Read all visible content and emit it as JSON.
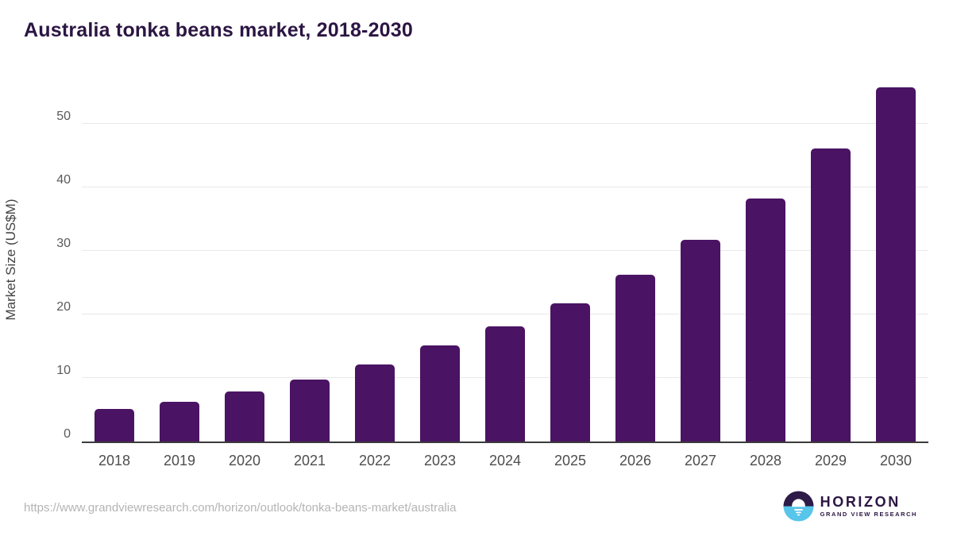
{
  "title": "Australia tonka beans market, 2018-2030",
  "chart_data": {
    "type": "bar",
    "title": "Australia tonka beans market, 2018-2030",
    "categories": [
      "2018",
      "2019",
      "2020",
      "2021",
      "2022",
      "2023",
      "2024",
      "2025",
      "2026",
      "2027",
      "2028",
      "2029",
      "2030"
    ],
    "values": [
      5.1,
      6.3,
      7.9,
      9.7,
      12.1,
      15.1,
      18.1,
      21.8,
      26.2,
      31.7,
      38.2,
      46.1,
      55.7
    ],
    "xlabel": "",
    "ylabel": "Market Size (US$M)",
    "yticks": [
      0,
      10,
      20,
      30,
      40,
      50
    ],
    "ylim": [
      0,
      57.6
    ],
    "grid": "horizontal-only",
    "legend": "none",
    "bar_color": "#4a1363"
  },
  "footer": {
    "source_url": "https://www.grandviewresearch.com/horizon/outlook/tonka-beans-market/australia",
    "logo": {
      "brand": "HORIZON",
      "sub_brand": "GRAND VIEW RESEARCH"
    }
  },
  "colors": {
    "bar": "#4a1363",
    "title": "#2b1543",
    "tick_label": "#595959",
    "x_label": "#4d4d4d",
    "gridline": "#e8e8e8",
    "axis_line": "#3b3b3b",
    "url_text": "#b4b4b4",
    "logo_blue": "#58c5ea",
    "logo_purple": "#2e1a47",
    "background": "#ffffff"
  }
}
